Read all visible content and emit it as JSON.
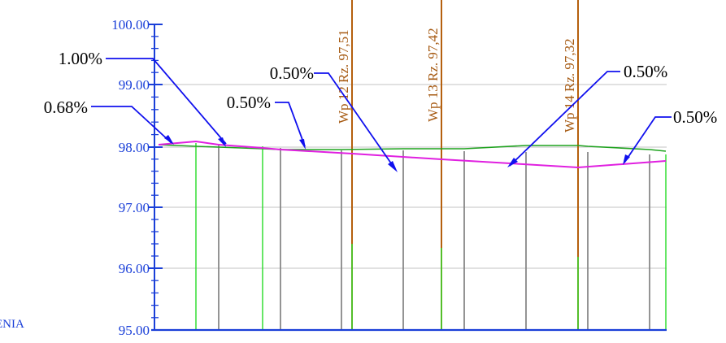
{
  "axis": {
    "color": "#1a3fd8",
    "labels": [
      "100.00",
      "99.00",
      "98.00",
      "97.00",
      "96.00",
      "95.00"
    ]
  },
  "side_label": "ENIA",
  "wells": [
    {
      "label": "Wp 12  Rz. 97,51"
    },
    {
      "label": "Wp 13  Rz. 97,42"
    },
    {
      "label": "Wp 14  Rz. 97,32"
    }
  ],
  "slopes": [
    {
      "label": "1.00%"
    },
    {
      "label": "0.68%"
    },
    {
      "label": "0.50%"
    },
    {
      "label": "0.50%"
    },
    {
      "label": "0.50%"
    },
    {
      "label": "0.50%"
    }
  ],
  "colors": {
    "terrain": "#1fa31f",
    "pipe": "#e020e0",
    "well": "#b5600e",
    "leader": "#1010ee",
    "grid": "#cfcfcf",
    "station_green": "#33dd33",
    "station_gray": "#888888",
    "well_text": "#a65a12"
  }
}
